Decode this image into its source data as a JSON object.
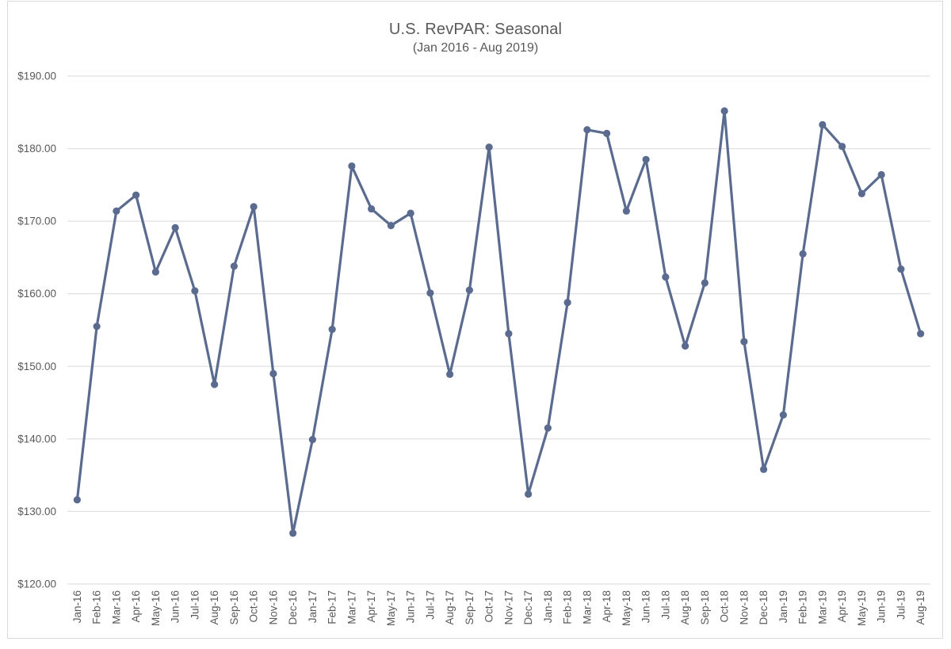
{
  "chart_data": {
    "type": "line",
    "title": "U.S. RevPAR: Seasonal",
    "subtitle": "(Jan 2016 - Aug 2019)",
    "xlabel": "",
    "ylabel": "",
    "grid": true,
    "legend": false,
    "marker": "circle",
    "categories": [
      "Jan-16",
      "Feb-16",
      "Mar-16",
      "Apr-16",
      "May-16",
      "Jun-16",
      "Jul-16",
      "Aug-16",
      "Sep-16",
      "Oct-16",
      "Nov-16",
      "Dec-16",
      "Jan-17",
      "Feb-17",
      "Mar-17",
      "Apr-17",
      "May-17",
      "Jun-17",
      "Jul-17",
      "Aug-17",
      "Sep-17",
      "Oct-17",
      "Nov-17",
      "Dec-17",
      "Jan-18",
      "Feb-18",
      "Mar-18",
      "Apr-18",
      "May-18",
      "Jun-18",
      "Jul-18",
      "Aug-18",
      "Sep-18",
      "Oct-18",
      "Nov-18",
      "Dec-18",
      "Jan-19",
      "Feb-19",
      "Mar-19",
      "Apr-19",
      "May-19",
      "Jun-19",
      "Jul-19",
      "Aug-19"
    ],
    "values": [
      131.6,
      155.5,
      171.4,
      173.6,
      163.0,
      169.1,
      160.4,
      147.5,
      163.8,
      172.0,
      149.0,
      127.0,
      139.9,
      155.1,
      177.6,
      171.7,
      169.4,
      171.1,
      160.1,
      148.9,
      160.5,
      180.2,
      154.5,
      132.4,
      141.5,
      158.8,
      182.6,
      182.1,
      171.4,
      178.5,
      162.3,
      152.8,
      161.5,
      185.2,
      153.4,
      135.8,
      143.3,
      165.5,
      183.3,
      180.3,
      173.8,
      176.4,
      163.4,
      154.5
    ],
    "y_axis": {
      "min": 120,
      "max": 190,
      "step": 10,
      "tick_labels": [
        "$190.00",
        "$180.00",
        "$170.00",
        "$160.00",
        "$150.00",
        "$140.00",
        "$130.00",
        "$120.00"
      ]
    },
    "colors": {
      "line": "#5A6B8F",
      "gridline": "#D9D9D9",
      "axis_text": "#595959",
      "title_text": "#595959",
      "frame_border": "#D9D9D9",
      "background": "#FFFFFF"
    }
  }
}
